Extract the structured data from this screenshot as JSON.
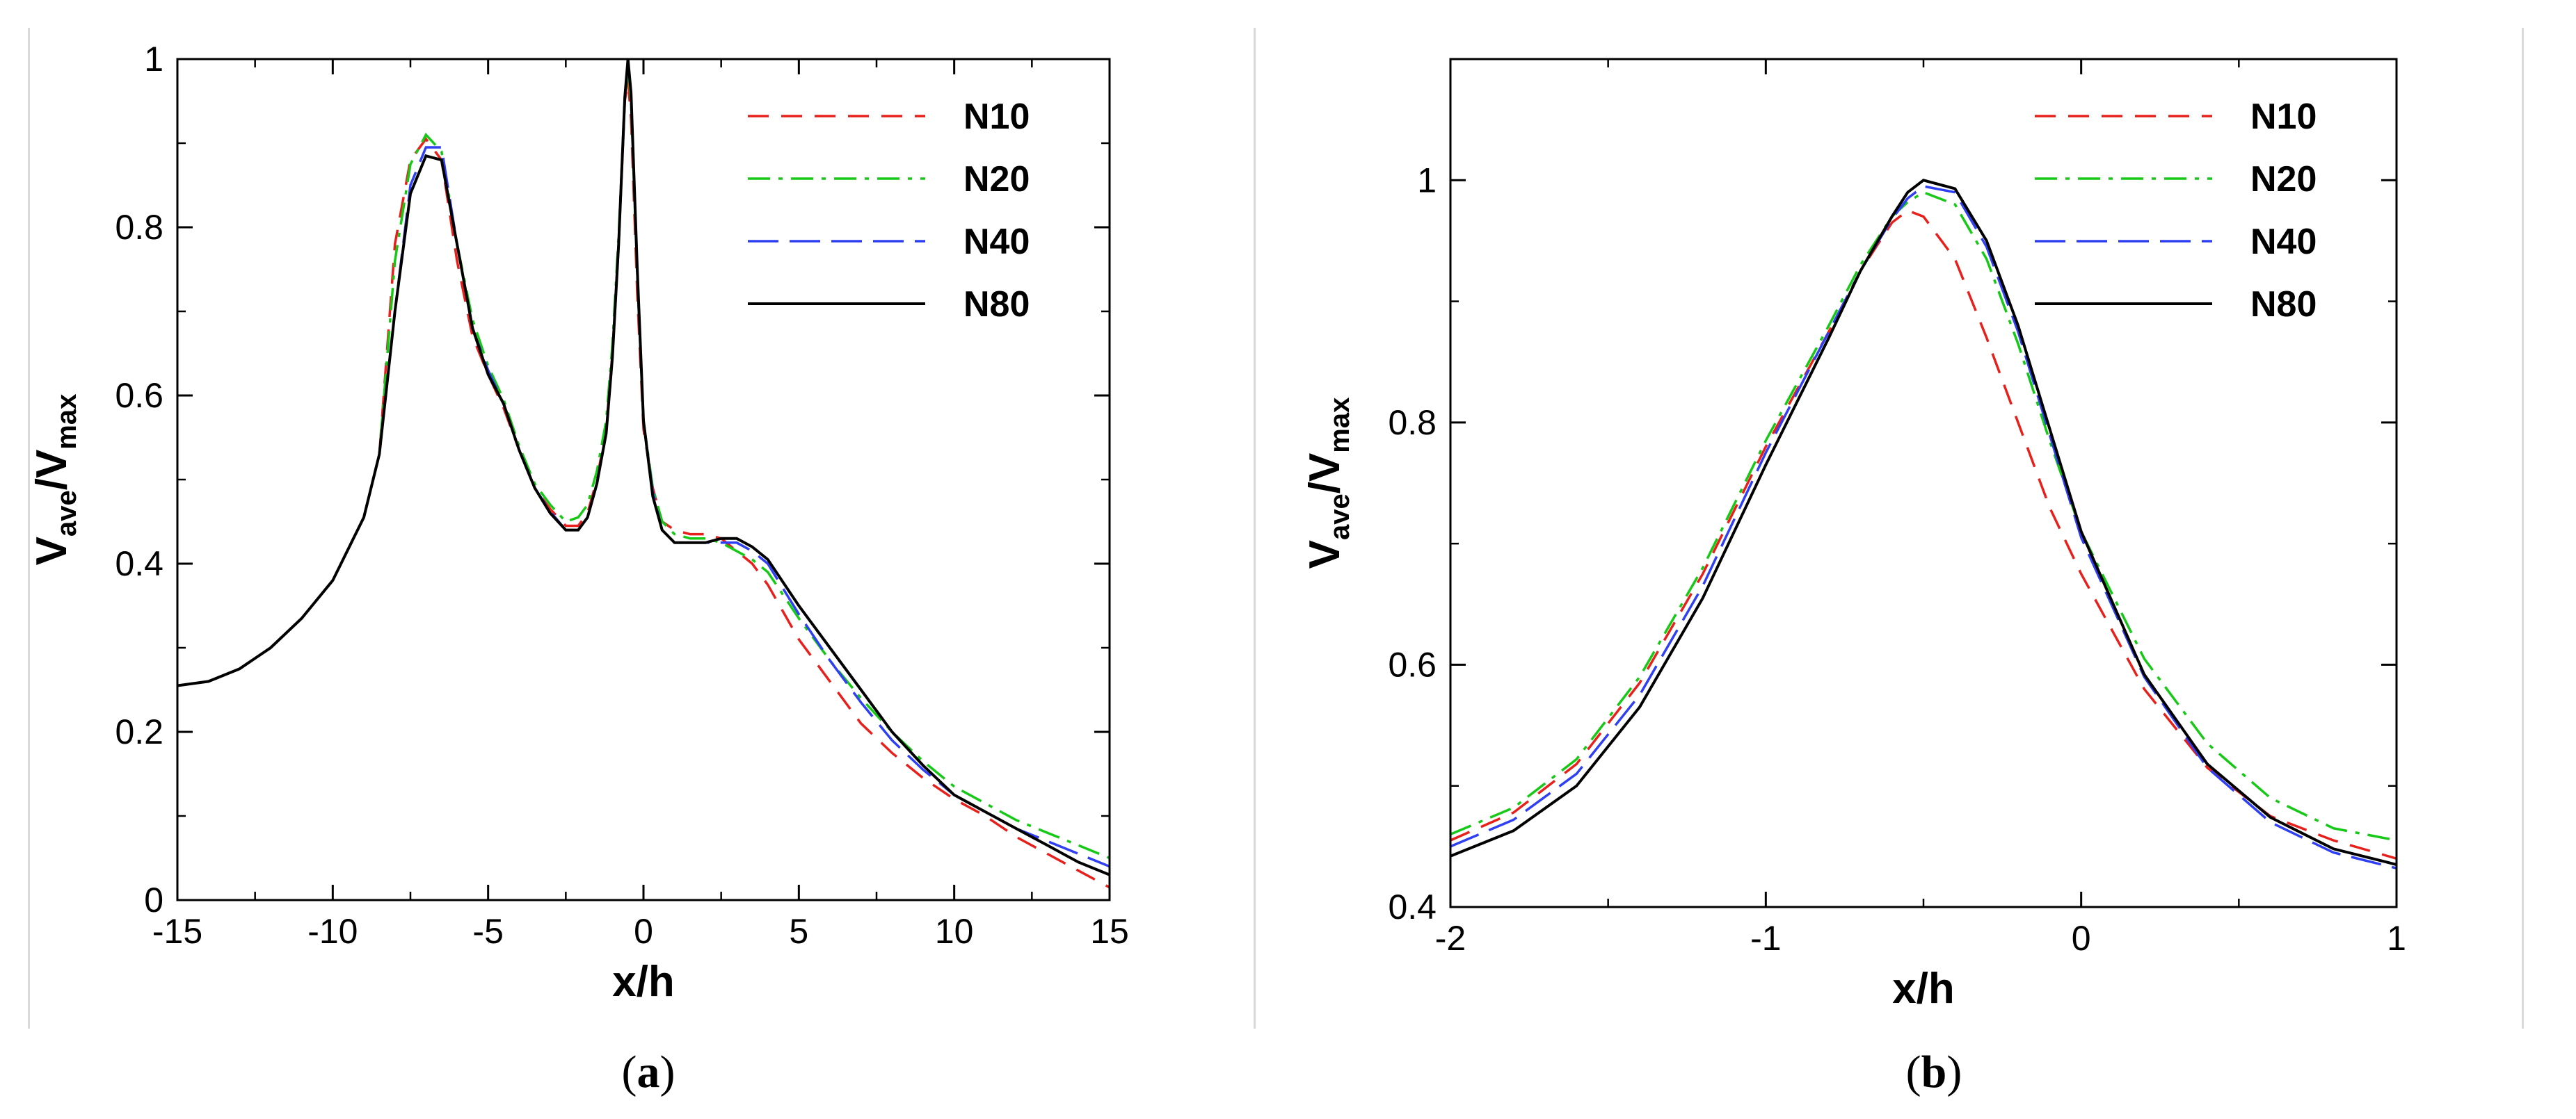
{
  "colors": {
    "N10": "#e8201c",
    "N20": "#17c917",
    "N40": "#2f3ff2",
    "N80": "#000000"
  },
  "captions": {
    "a": "a",
    "b": "b"
  },
  "chart_data": [
    {
      "type": "line",
      "panel": "a",
      "xlabel": "x/h",
      "ylabel_main": "V",
      "ylabel_sub1": "ave",
      "ylabel_sep": "/V",
      "ylabel_sub2": "max",
      "xlim": [
        -15,
        15
      ],
      "ylim": [
        0,
        1
      ],
      "xticks": [
        -15,
        -10,
        -5,
        0,
        5,
        10,
        15
      ],
      "yticks": [
        0,
        0.2,
        0.4,
        0.6,
        0.8,
        1
      ],
      "xtick_labels": [
        "-15",
        "-10",
        "-5",
        "0",
        "5",
        "10",
        "15"
      ],
      "ytick_labels": [
        "0",
        "0.2",
        "0.4",
        "0.6",
        "0.8",
        "1"
      ],
      "legend_position": "top-right",
      "series": [
        {
          "name": "N10",
          "style": "dash",
          "x": [
            -15,
            -14,
            -13,
            -12,
            -11,
            -10,
            -9,
            -8.5,
            -8,
            -7.5,
            -7,
            -6.5,
            -6,
            -5.5,
            -5,
            -4.5,
            -4,
            -3.5,
            -3,
            -2.5,
            -2.1,
            -1.8,
            -1.5,
            -1.2,
            -1,
            -0.8,
            -0.6,
            -0.5,
            -0.4,
            -0.2,
            0,
            0.3,
            0.6,
            1,
            1.5,
            2,
            2.5,
            3,
            3.5,
            4,
            5,
            6,
            7,
            8,
            9,
            10,
            11,
            12,
            13,
            14,
            15
          ],
          "y": [
            0.255,
            0.26,
            0.275,
            0.3,
            0.335,
            0.38,
            0.455,
            0.53,
            0.78,
            0.88,
            0.905,
            0.88,
            0.76,
            0.67,
            0.625,
            0.585,
            0.535,
            0.49,
            0.465,
            0.445,
            0.445,
            0.46,
            0.5,
            0.56,
            0.65,
            0.78,
            0.95,
            0.975,
            0.93,
            0.72,
            0.56,
            0.49,
            0.45,
            0.44,
            0.435,
            0.435,
            0.43,
            0.415,
            0.4,
            0.375,
            0.31,
            0.26,
            0.21,
            0.175,
            0.145,
            0.12,
            0.1,
            0.075,
            0.055,
            0.035,
            0.015
          ]
        },
        {
          "name": "N20",
          "style": "dashdot",
          "x": [
            -15,
            -14,
            -13,
            -12,
            -11,
            -10,
            -9,
            -8.5,
            -8,
            -7.5,
            -7,
            -6.5,
            -6,
            -5.5,
            -5,
            -4.5,
            -4,
            -3.5,
            -3,
            -2.5,
            -2.1,
            -1.8,
            -1.5,
            -1.2,
            -1,
            -0.8,
            -0.6,
            -0.5,
            -0.4,
            -0.2,
            0,
            0.3,
            0.6,
            1,
            1.5,
            2,
            2.5,
            3,
            3.5,
            4,
            5,
            6,
            7,
            8,
            9,
            10,
            11,
            12,
            13,
            14,
            15
          ],
          "y": [
            0.255,
            0.26,
            0.275,
            0.3,
            0.335,
            0.38,
            0.455,
            0.53,
            0.76,
            0.875,
            0.91,
            0.89,
            0.78,
            0.69,
            0.635,
            0.595,
            0.54,
            0.495,
            0.47,
            0.45,
            0.455,
            0.47,
            0.51,
            0.57,
            0.66,
            0.79,
            0.955,
            0.99,
            0.95,
            0.74,
            0.57,
            0.49,
            0.45,
            0.435,
            0.43,
            0.43,
            0.425,
            0.415,
            0.405,
            0.39,
            0.335,
            0.285,
            0.24,
            0.2,
            0.165,
            0.135,
            0.115,
            0.095,
            0.08,
            0.065,
            0.05
          ]
        },
        {
          "name": "N40",
          "style": "longdash",
          "x": [
            -15,
            -14,
            -13,
            -12,
            -11,
            -10,
            -9,
            -8.5,
            -8,
            -7.5,
            -7,
            -6.5,
            -6,
            -5.5,
            -5,
            -4.5,
            -4,
            -3.5,
            -3,
            -2.5,
            -2.1,
            -1.8,
            -1.5,
            -1.2,
            -1,
            -0.8,
            -0.6,
            -0.5,
            -0.4,
            -0.2,
            0,
            0.3,
            0.6,
            1,
            1.5,
            2,
            2.5,
            3,
            3.5,
            4,
            5,
            6,
            7,
            8,
            9,
            10,
            11,
            12,
            13,
            14,
            15
          ],
          "y": [
            0.255,
            0.26,
            0.275,
            0.3,
            0.335,
            0.38,
            0.455,
            0.53,
            0.7,
            0.85,
            0.895,
            0.895,
            0.78,
            0.68,
            0.63,
            0.59,
            0.535,
            0.49,
            0.462,
            0.44,
            0.44,
            0.455,
            0.495,
            0.555,
            0.645,
            0.78,
            0.955,
            0.997,
            0.955,
            0.745,
            0.57,
            0.485,
            0.44,
            0.425,
            0.425,
            0.425,
            0.425,
            0.425,
            0.415,
            0.4,
            0.34,
            0.285,
            0.235,
            0.19,
            0.155,
            0.125,
            0.105,
            0.085,
            0.07,
            0.055,
            0.04
          ]
        },
        {
          "name": "N80",
          "style": "solid",
          "x": [
            -15,
            -14,
            -13,
            -12,
            -11,
            -10,
            -9,
            -8.5,
            -8,
            -7.5,
            -7,
            -6.5,
            -6,
            -5.5,
            -5,
            -4.5,
            -4,
            -3.5,
            -3,
            -2.5,
            -2.1,
            -1.8,
            -1.5,
            -1.2,
            -1,
            -0.8,
            -0.6,
            -0.5,
            -0.4,
            -0.2,
            0,
            0.3,
            0.6,
            1,
            1.5,
            2,
            2.5,
            3,
            3.5,
            4,
            5,
            6,
            7,
            8,
            9,
            10,
            11,
            12,
            13,
            14,
            15
          ],
          "y": [
            0.255,
            0.26,
            0.275,
            0.3,
            0.335,
            0.38,
            0.455,
            0.53,
            0.7,
            0.84,
            0.885,
            0.88,
            0.78,
            0.68,
            0.625,
            0.59,
            0.535,
            0.49,
            0.46,
            0.44,
            0.44,
            0.455,
            0.495,
            0.555,
            0.645,
            0.78,
            0.955,
            1.0,
            0.96,
            0.75,
            0.57,
            0.48,
            0.44,
            0.425,
            0.425,
            0.425,
            0.43,
            0.43,
            0.42,
            0.405,
            0.35,
            0.3,
            0.25,
            0.2,
            0.16,
            0.125,
            0.105,
            0.085,
            0.065,
            0.045,
            0.03
          ]
        }
      ]
    },
    {
      "type": "line",
      "panel": "b",
      "xlabel": "x/h",
      "ylabel_main": "V",
      "ylabel_sub1": "ave",
      "ylabel_sep": "/V",
      "ylabel_sub2": "max",
      "xlim": [
        -2,
        1
      ],
      "ylim": [
        0.4,
        1.1
      ],
      "xticks": [
        -2,
        -1,
        0,
        1
      ],
      "yticks": [
        0.4,
        0.6,
        0.8,
        1
      ],
      "xtick_labels": [
        "-2",
        "-1",
        "0",
        "1"
      ],
      "ytick_labels": [
        "0.4",
        "0.6",
        "0.8",
        "1"
      ],
      "legend_position": "top-right",
      "series": [
        {
          "name": "N10",
          "style": "dash",
          "x": [
            -2,
            -1.8,
            -1.6,
            -1.4,
            -1.2,
            -1,
            -0.8,
            -0.7,
            -0.6,
            -0.55,
            -0.5,
            -0.4,
            -0.3,
            -0.2,
            -0.1,
            0,
            0.2,
            0.4,
            0.6,
            0.8,
            1
          ],
          "y": [
            0.455,
            0.478,
            0.518,
            0.585,
            0.675,
            0.78,
            0.875,
            0.925,
            0.965,
            0.975,
            0.97,
            0.935,
            0.87,
            0.8,
            0.73,
            0.675,
            0.58,
            0.515,
            0.475,
            0.455,
            0.44
          ]
        },
        {
          "name": "N20",
          "style": "dashdot",
          "x": [
            -2,
            -1.8,
            -1.6,
            -1.4,
            -1.2,
            -1,
            -0.8,
            -0.7,
            -0.6,
            -0.55,
            -0.5,
            -0.4,
            -0.3,
            -0.2,
            -0.1,
            0,
            0.2,
            0.4,
            0.6,
            0.8,
            1
          ],
          "y": [
            0.46,
            0.482,
            0.522,
            0.59,
            0.68,
            0.785,
            0.88,
            0.93,
            0.97,
            0.982,
            0.99,
            0.98,
            0.935,
            0.865,
            0.785,
            0.71,
            0.605,
            0.535,
            0.49,
            0.465,
            0.455
          ]
        },
        {
          "name": "N40",
          "style": "longdash",
          "x": [
            -2,
            -1.8,
            -1.6,
            -1.4,
            -1.2,
            -1,
            -0.8,
            -0.7,
            -0.6,
            -0.55,
            -0.5,
            -0.4,
            -0.3,
            -0.2,
            -0.1,
            0,
            0.2,
            0.4,
            0.6,
            0.8,
            1
          ],
          "y": [
            0.45,
            0.472,
            0.51,
            0.575,
            0.665,
            0.775,
            0.875,
            0.925,
            0.968,
            0.985,
            0.995,
            0.99,
            0.945,
            0.875,
            0.79,
            0.705,
            0.59,
            0.515,
            0.47,
            0.445,
            0.432
          ]
        },
        {
          "name": "N80",
          "style": "solid",
          "x": [
            -2,
            -1.8,
            -1.6,
            -1.4,
            -1.2,
            -1,
            -0.8,
            -0.7,
            -0.6,
            -0.55,
            -0.5,
            -0.4,
            -0.3,
            -0.2,
            -0.1,
            0,
            0.2,
            0.4,
            0.6,
            0.8,
            1
          ],
          "y": [
            0.442,
            0.463,
            0.5,
            0.565,
            0.655,
            0.765,
            0.87,
            0.925,
            0.97,
            0.99,
            1.0,
            0.993,
            0.95,
            0.88,
            0.795,
            0.71,
            0.592,
            0.518,
            0.474,
            0.448,
            0.435
          ]
        }
      ]
    }
  ]
}
